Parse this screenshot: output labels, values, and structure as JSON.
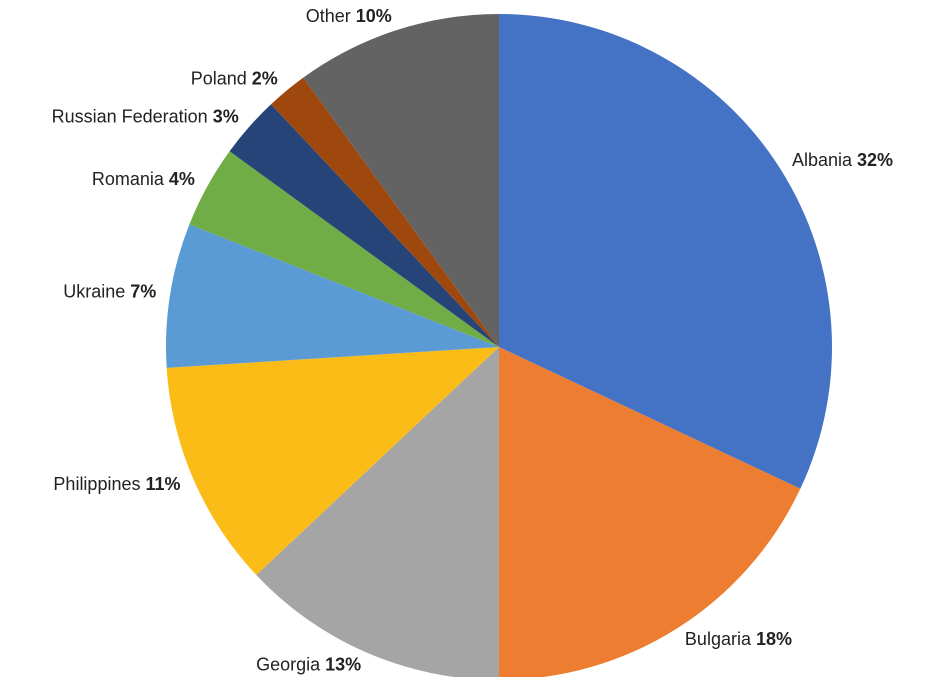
{
  "chart_data": {
    "type": "pie",
    "categories": [
      "Albania",
      "Bulgaria",
      "Georgia",
      "Philippines",
      "Ukraine",
      "Romania",
      "Russian Federation",
      "Poland",
      "Other"
    ],
    "values": [
      32,
      18,
      13,
      11,
      7,
      4,
      3,
      2,
      10
    ],
    "value_labels": [
      "32%",
      "18%",
      "13%",
      "11%",
      "7%",
      "4%",
      "3%",
      "2%",
      "10%"
    ],
    "colors": [
      "#4472c4",
      "#ed7d31",
      "#a5a5a5",
      "#fbbc18",
      "#5b9bd5",
      "#70ad47",
      "#264478",
      "#9e480e",
      "#636363"
    ]
  }
}
